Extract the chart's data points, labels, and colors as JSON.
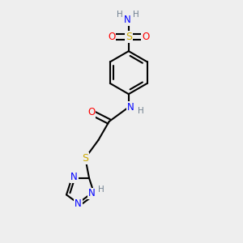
{
  "background_color": "#eeeeee",
  "atom_colors": {
    "C": "#000000",
    "H": "#708090",
    "N": "#0000ff",
    "O": "#ff0000",
    "S": "#ccaa00"
  },
  "bond_color": "#000000",
  "bond_width": 1.5,
  "figsize": [
    3.0,
    3.0
  ],
  "dpi": 100
}
